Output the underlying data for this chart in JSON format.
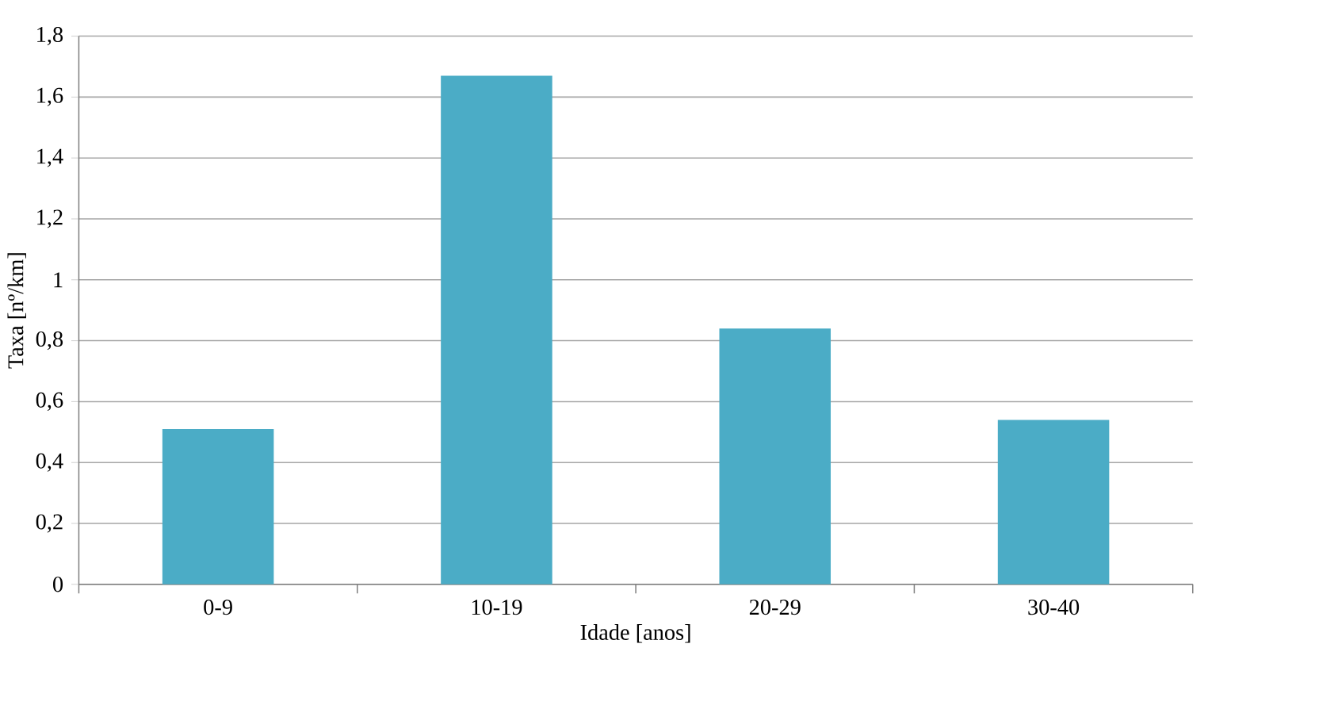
{
  "chart_data": {
    "type": "bar",
    "xlabel": "Idade [anos]",
    "ylabel": "Taxa [nº/km]",
    "categories": [
      "0-9",
      "10-19",
      "20-29",
      "30-40"
    ],
    "values": [
      0.51,
      1.67,
      0.84,
      0.54
    ],
    "color": "#4bacc6",
    "ylim": [
      0,
      1.8
    ],
    "yticks": [
      0,
      {
        "value": 0.2,
        "label": "0,2"
      },
      {
        "value": 0.4,
        "label": "0,4"
      },
      {
        "value": 0.6,
        "label": "0,6"
      },
      {
        "value": 0.8,
        "label": "0,8"
      },
      1,
      {
        "value": 1.2,
        "label": "1,2"
      },
      {
        "value": 1.4,
        "label": "1,4"
      },
      {
        "value": 1.6,
        "label": "1,6"
      },
      {
        "value": 1.8,
        "label": "1,8"
      }
    ],
    "grid": "y"
  }
}
